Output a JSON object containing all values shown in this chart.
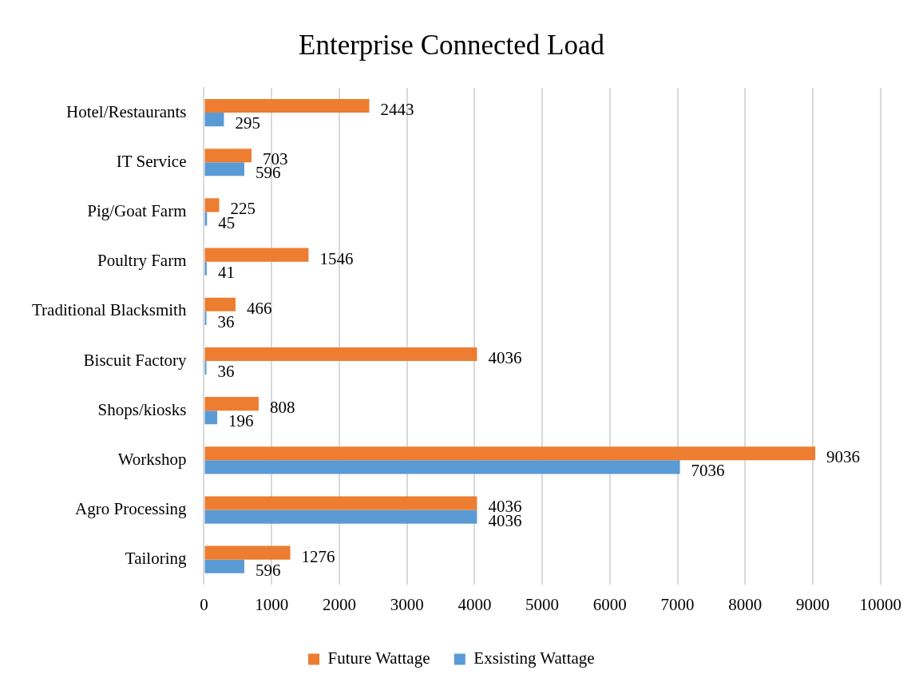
{
  "chart_data": {
    "type": "bar",
    "orientation": "horizontal",
    "title": "Enterprise Connected Load",
    "categories": [
      "Hotel/Restaurants",
      "IT Service",
      "Pig/Goat Farm",
      "Poultry Farm",
      "Traditional Blacksmith",
      "Biscuit Factory",
      "Shops/kiosks",
      "Workshop",
      "Agro Processing",
      "Tailoring"
    ],
    "series": [
      {
        "name": "Future Wattage",
        "color": "#ed7d31",
        "values": [
          2443,
          703,
          225,
          1546,
          466,
          4036,
          808,
          9036,
          4036,
          1276
        ]
      },
      {
        "name": "Exsisting Wattage",
        "color": "#5b9bd5",
        "values": [
          295,
          596,
          45,
          41,
          36,
          36,
          196,
          7036,
          4036,
          596
        ]
      }
    ],
    "xlim": [
      0,
      10000
    ],
    "xticks": [
      0,
      1000,
      2000,
      3000,
      4000,
      5000,
      6000,
      7000,
      8000,
      9000,
      10000
    ],
    "grid": "x",
    "legend": "bottom",
    "data_labels": true
  }
}
